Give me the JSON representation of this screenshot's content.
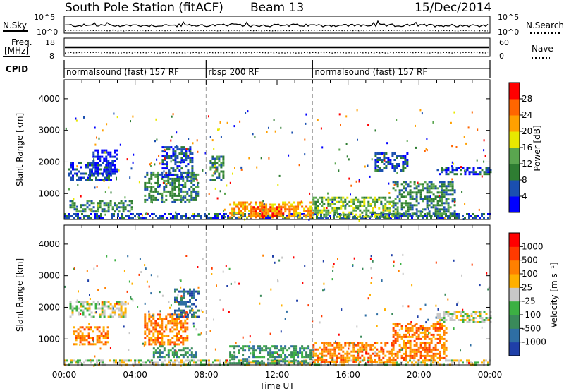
{
  "header": {
    "station": "South Pole Station (fitACF)",
    "beam": "Beam 13",
    "date": "15/Dec/2014"
  },
  "top_strips": {
    "nsky_label": "N.Sky",
    "nsky_ticks": [
      "10^5",
      "10^0"
    ],
    "nsearch_label": "N.Search",
    "nsearch_ticks": [
      "10^5",
      "10^0"
    ],
    "freq_label": "Freq.",
    "freq_unit": "[MHz]",
    "freq_ticks": [
      "18",
      "8"
    ],
    "nave_label": "Nave",
    "nave_ticks": [
      "60",
      "0"
    ],
    "cpid_label": "CPID",
    "cpid_segments": [
      {
        "label": "normalsound (fast) 157 RF",
        "start_hour": 0,
        "end_hour": 8
      },
      {
        "label": "rbsp 200 RF",
        "start_hour": 8,
        "end_hour": 14
      },
      {
        "label": "normalsound (fast) 157 RF",
        "start_hour": 14,
        "end_hour": 24
      }
    ]
  },
  "power_colorbar": {
    "label": "Power [dB]",
    "ticks": [
      "28",
      "24",
      "20",
      "16",
      "12",
      "8",
      "4"
    ],
    "colors": [
      "#0000ff",
      "#1a4fb0",
      "#2e7d32",
      "#5aa64f",
      "#e8e800",
      "#ffa000",
      "#ff6600",
      "#ff0000"
    ]
  },
  "velocity_colorbar": {
    "label": "Velocity [m s⁻¹]",
    "ticks": [
      "1000",
      "500",
      "100",
      "25",
      "-25",
      "-100",
      "-500",
      "-1000"
    ],
    "colors": [
      "#1f3fa8",
      "#2e6ea3",
      "#3a8a5a",
      "#3cb043",
      "#c8c8c8",
      "#ffb000",
      "#ff8000",
      "#ff3a00",
      "#ff0000"
    ]
  },
  "chart_data": [
    {
      "type": "heatmap",
      "name": "power",
      "ylabel": "Slant Range [km]",
      "xlim": [
        0,
        24
      ],
      "ylim": [
        180,
        4600
      ],
      "yticks": [
        1000,
        2000,
        3000,
        4000
      ],
      "xticks": [
        "00:00",
        "04:00",
        "08:00",
        "12:00",
        "16:00",
        "20:00",
        "00:00"
      ],
      "echo_regions": [
        {
          "t0": 0.0,
          "t1": 24.0,
          "r0": 200,
          "r1": 380,
          "level": 1
        },
        {
          "t0": 0.2,
          "t1": 2.6,
          "r0": 1400,
          "r1": 2000,
          "level": 1
        },
        {
          "t0": 1.6,
          "t1": 3.0,
          "r0": 1600,
          "r1": 2400,
          "level": 0
        },
        {
          "t0": 0.3,
          "t1": 3.8,
          "r0": 400,
          "r1": 800,
          "level": 2
        },
        {
          "t0": 4.5,
          "t1": 7.5,
          "r0": 700,
          "r1": 1700,
          "level": 2
        },
        {
          "t0": 5.5,
          "t1": 7.2,
          "r0": 1500,
          "r1": 2500,
          "level": 1
        },
        {
          "t0": 8.2,
          "t1": 9.0,
          "r0": 1400,
          "r1": 2200,
          "level": 2
        },
        {
          "t0": 9.3,
          "t1": 14.0,
          "r0": 250,
          "r1": 750,
          "level": 5
        },
        {
          "t0": 10.5,
          "t1": 13.0,
          "r0": 300,
          "r1": 600,
          "level": 6
        },
        {
          "t0": 14.0,
          "t1": 18.5,
          "r0": 250,
          "r1": 900,
          "level": 3
        },
        {
          "t0": 18.5,
          "t1": 22.0,
          "r0": 300,
          "r1": 1400,
          "level": 2
        },
        {
          "t0": 17.5,
          "t1": 19.3,
          "r0": 1700,
          "r1": 2300,
          "level": 1
        },
        {
          "t0": 21.0,
          "t1": 24.0,
          "r0": 1600,
          "r1": 1850,
          "level": 1
        }
      ]
    },
    {
      "type": "heatmap",
      "name": "velocity",
      "ylabel": "Slant Range [km]",
      "xlabel": "Time UT",
      "xlim": [
        0,
        24
      ],
      "ylim": [
        180,
        4600
      ],
      "yticks": [
        1000,
        2000,
        3000,
        4000
      ],
      "xticks": [
        "00:00",
        "04:00",
        "08:00",
        "12:00",
        "16:00",
        "20:00",
        "00:00"
      ],
      "echo_regions": [
        {
          "t0": 0.0,
          "t1": 24.0,
          "r0": 200,
          "r1": 350,
          "level": 4
        },
        {
          "t0": 0.3,
          "t1": 3.5,
          "r0": 1700,
          "r1": 2200,
          "level": 4
        },
        {
          "t0": 0.5,
          "t1": 2.5,
          "r0": 800,
          "r1": 1400,
          "level": 6
        },
        {
          "t0": 4.5,
          "t1": 7.0,
          "r0": 800,
          "r1": 1800,
          "level": 6
        },
        {
          "t0": 5.0,
          "t1": 7.5,
          "r0": 400,
          "r1": 800,
          "level": 2
        },
        {
          "t0": 6.2,
          "t1": 7.6,
          "r0": 1700,
          "r1": 2600,
          "level": 1
        },
        {
          "t0": 9.3,
          "t1": 14.0,
          "r0": 250,
          "r1": 800,
          "level": 2
        },
        {
          "t0": 14.0,
          "t1": 18.5,
          "r0": 250,
          "r1": 900,
          "level": 6
        },
        {
          "t0": 18.5,
          "t1": 21.5,
          "r0": 300,
          "r1": 1500,
          "level": 6
        },
        {
          "t0": 21.0,
          "t1": 24.0,
          "r0": 1500,
          "r1": 1900,
          "level": 4
        }
      ]
    }
  ]
}
